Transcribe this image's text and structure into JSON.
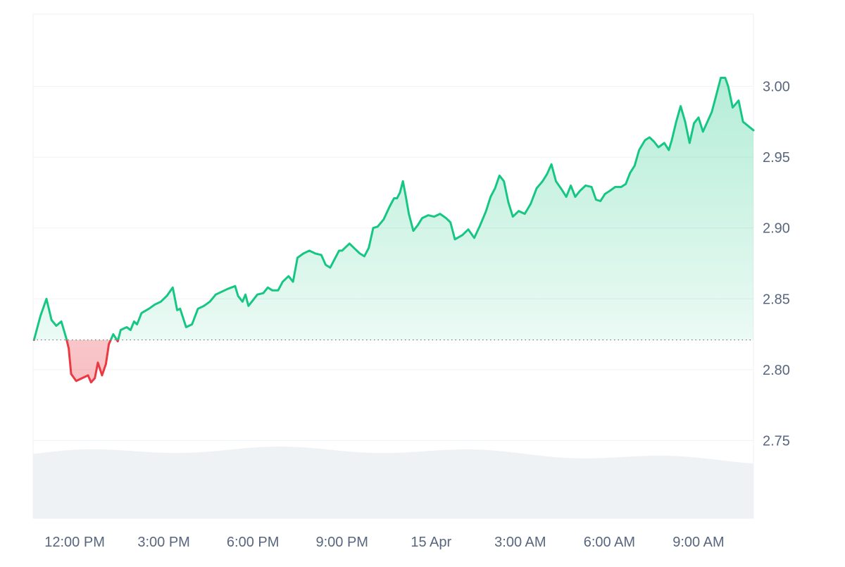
{
  "chart_data": {
    "type": "area",
    "series_name": "",
    "y_ticks": [
      "3.00",
      "2.95",
      "2.90",
      "2.85",
      "2.80",
      "2.75"
    ],
    "y_tick_values": [
      3.0,
      2.95,
      2.9,
      2.85,
      2.8,
      2.75
    ],
    "ylim": [
      2.695,
      3.051
    ],
    "x_ticks": [
      "12:00 PM",
      "3:00 PM",
      "6:00 PM",
      "9:00 PM",
      "15 Apr",
      "3:00 AM",
      "6:00 AM",
      "9:00 AM"
    ],
    "x_tick_hours": [
      12,
      15,
      18,
      21,
      24,
      27,
      30,
      33
    ],
    "xlim_hours": [
      10.6,
      34.85
    ],
    "baseline": 2.821,
    "grid": true,
    "colors": {
      "up": "#16c784",
      "down": "#ea3943",
      "grid": "#eff2f5",
      "text": "#58667e",
      "volume": "#eff2f5"
    },
    "price_points": [
      [
        10.63,
        2.821
      ],
      [
        10.85,
        2.838
      ],
      [
        11.05,
        2.85
      ],
      [
        11.22,
        2.835
      ],
      [
        11.38,
        2.831
      ],
      [
        11.55,
        2.834
      ],
      [
        11.72,
        2.822
      ],
      [
        11.8,
        2.815
      ],
      [
        11.88,
        2.797
      ],
      [
        12.05,
        2.792
      ],
      [
        12.25,
        2.794
      ],
      [
        12.45,
        2.796
      ],
      [
        12.55,
        2.791
      ],
      [
        12.68,
        2.794
      ],
      [
        12.78,
        2.805
      ],
      [
        12.92,
        2.796
      ],
      [
        13.05,
        2.804
      ],
      [
        13.15,
        2.818
      ],
      [
        13.3,
        2.825
      ],
      [
        13.45,
        2.82
      ],
      [
        13.55,
        2.828
      ],
      [
        13.75,
        2.83
      ],
      [
        13.88,
        2.828
      ],
      [
        14.0,
        2.834
      ],
      [
        14.1,
        2.832
      ],
      [
        14.25,
        2.84
      ],
      [
        14.5,
        2.843
      ],
      [
        14.7,
        2.846
      ],
      [
        14.9,
        2.848
      ],
      [
        15.1,
        2.852
      ],
      [
        15.3,
        2.858
      ],
      [
        15.45,
        2.842
      ],
      [
        15.55,
        2.843
      ],
      [
        15.75,
        2.83
      ],
      [
        15.95,
        2.832
      ],
      [
        16.15,
        2.843
      ],
      [
        16.35,
        2.845
      ],
      [
        16.55,
        2.848
      ],
      [
        16.75,
        2.853
      ],
      [
        16.95,
        2.855
      ],
      [
        17.15,
        2.857
      ],
      [
        17.4,
        2.859
      ],
      [
        17.5,
        2.852
      ],
      [
        17.65,
        2.848
      ],
      [
        17.75,
        2.853
      ],
      [
        17.85,
        2.845
      ],
      [
        18.0,
        2.849
      ],
      [
        18.15,
        2.853
      ],
      [
        18.35,
        2.854
      ],
      [
        18.5,
        2.858
      ],
      [
        18.65,
        2.856
      ],
      [
        18.85,
        2.856
      ],
      [
        19.0,
        2.862
      ],
      [
        19.2,
        2.866
      ],
      [
        19.35,
        2.862
      ],
      [
        19.5,
        2.879
      ],
      [
        19.7,
        2.882
      ],
      [
        19.9,
        2.884
      ],
      [
        20.1,
        2.882
      ],
      [
        20.3,
        2.881
      ],
      [
        20.45,
        2.874
      ],
      [
        20.6,
        2.872
      ],
      [
        20.8,
        2.88
      ],
      [
        20.9,
        2.884
      ],
      [
        21.0,
        2.884
      ],
      [
        21.25,
        2.889
      ],
      [
        21.45,
        2.885
      ],
      [
        21.6,
        2.882
      ],
      [
        21.75,
        2.88
      ],
      [
        21.9,
        2.886
      ],
      [
        22.05,
        2.9
      ],
      [
        22.2,
        2.901
      ],
      [
        22.4,
        2.906
      ],
      [
        22.6,
        2.915
      ],
      [
        22.75,
        2.921
      ],
      [
        22.85,
        2.921
      ],
      [
        22.95,
        2.925
      ],
      [
        23.05,
        2.933
      ],
      [
        23.15,
        2.922
      ],
      [
        23.25,
        2.91
      ],
      [
        23.4,
        2.898
      ],
      [
        23.55,
        2.902
      ],
      [
        23.7,
        2.907
      ],
      [
        23.9,
        2.909
      ],
      [
        24.1,
        2.908
      ],
      [
        24.3,
        2.91
      ],
      [
        24.5,
        2.907
      ],
      [
        24.65,
        2.904
      ],
      [
        24.8,
        2.892
      ],
      [
        25.05,
        2.895
      ],
      [
        25.25,
        2.899
      ],
      [
        25.45,
        2.893
      ],
      [
        25.65,
        2.902
      ],
      [
        25.85,
        2.912
      ],
      [
        26.0,
        2.922
      ],
      [
        26.15,
        2.928
      ],
      [
        26.3,
        2.937
      ],
      [
        26.45,
        2.933
      ],
      [
        26.6,
        2.918
      ],
      [
        26.75,
        2.908
      ],
      [
        26.95,
        2.912
      ],
      [
        27.15,
        2.91
      ],
      [
        27.35,
        2.917
      ],
      [
        27.55,
        2.928
      ],
      [
        27.75,
        2.933
      ],
      [
        27.9,
        2.938
      ],
      [
        28.05,
        2.945
      ],
      [
        28.2,
        2.933
      ],
      [
        28.4,
        2.927
      ],
      [
        28.55,
        2.922
      ],
      [
        28.7,
        2.93
      ],
      [
        28.85,
        2.922
      ],
      [
        29.0,
        2.926
      ],
      [
        29.2,
        2.93
      ],
      [
        29.4,
        2.929
      ],
      [
        29.55,
        2.92
      ],
      [
        29.7,
        2.919
      ],
      [
        29.85,
        2.924
      ],
      [
        30.0,
        2.926
      ],
      [
        30.2,
        2.929
      ],
      [
        30.4,
        2.929
      ],
      [
        30.55,
        2.931
      ],
      [
        30.7,
        2.939
      ],
      [
        30.85,
        2.944
      ],
      [
        31.0,
        2.955
      ],
      [
        31.2,
        2.962
      ],
      [
        31.35,
        2.964
      ],
      [
        31.5,
        2.961
      ],
      [
        31.65,
        2.957
      ],
      [
        31.85,
        2.96
      ],
      [
        32.0,
        2.955
      ],
      [
        32.1,
        2.962
      ],
      [
        32.25,
        2.975
      ],
      [
        32.4,
        2.986
      ],
      [
        32.55,
        2.975
      ],
      [
        32.7,
        2.96
      ],
      [
        32.85,
        2.974
      ],
      [
        33.0,
        2.978
      ],
      [
        33.15,
        2.968
      ],
      [
        33.3,
        2.975
      ],
      [
        33.45,
        2.982
      ],
      [
        33.6,
        2.994
      ],
      [
        33.75,
        3.006
      ],
      [
        33.9,
        3.006
      ],
      [
        34.0,
        3.0
      ],
      [
        34.15,
        2.985
      ],
      [
        34.35,
        2.99
      ],
      [
        34.5,
        2.975
      ],
      [
        34.85,
        2.969
      ]
    ]
  }
}
